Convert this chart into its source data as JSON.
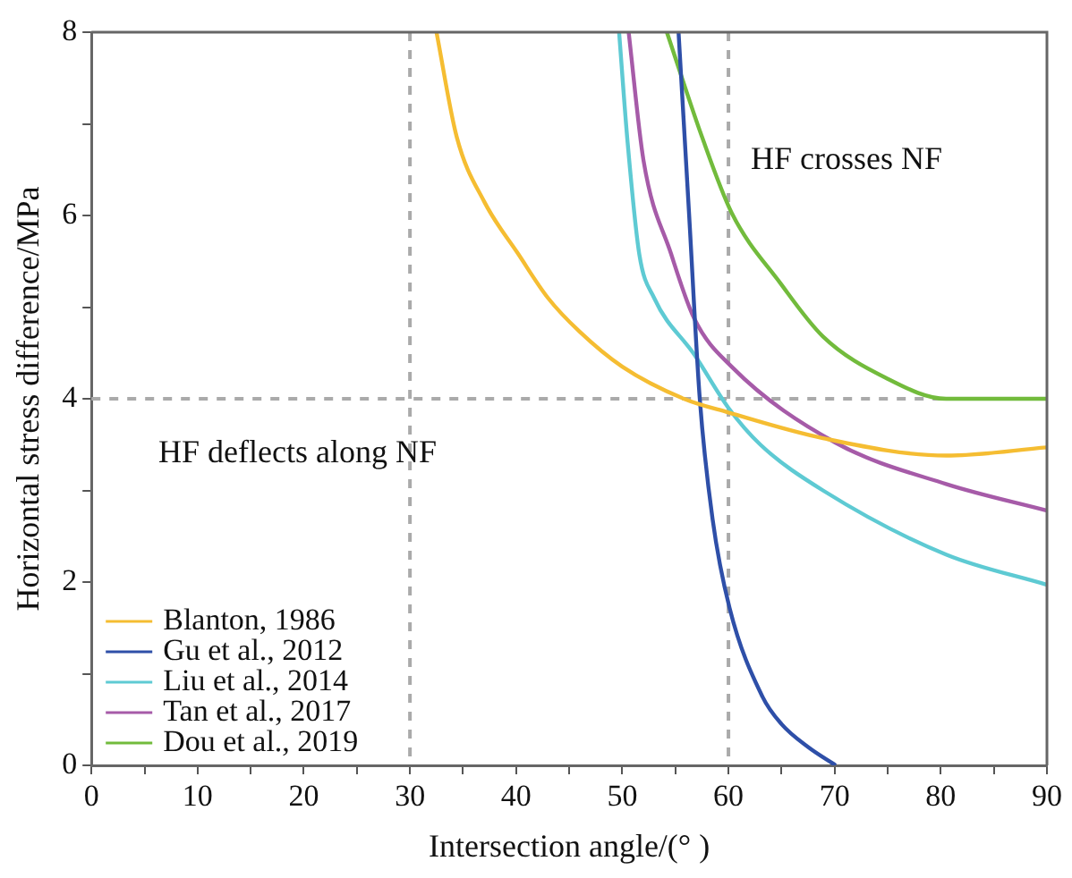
{
  "chart_data": {
    "type": "line",
    "xlabel": "Intersection angle/(° )",
    "ylabel": "Horizontal stress difference/MPa",
    "xlim": [
      0,
      90
    ],
    "ylim": [
      0,
      8
    ],
    "xticks": [
      0,
      {
        "value": 5,
        "label": null
      },
      10,
      {
        "value": 15,
        "label": null
      },
      20,
      {
        "value": 25,
        "label": null
      },
      30,
      {
        "value": 35,
        "label": null
      },
      40,
      {
        "value": 45,
        "label": null
      },
      50,
      {
        "value": 55,
        "label": null
      },
      60,
      {
        "value": 65,
        "label": null
      },
      70,
      {
        "value": 75,
        "label": null
      },
      80,
      {
        "value": 85,
        "label": null
      },
      90
    ],
    "yticks": [
      0,
      {
        "value": 1,
        "label": null
      },
      2,
      {
        "value": 3,
        "label": null
      },
      4,
      {
        "value": 5,
        "label": null
      },
      6,
      {
        "value": 7,
        "label": null
      },
      8
    ],
    "grid": false,
    "legend": "bottom left",
    "marker": "none",
    "line_style": "solid",
    "series": [
      {
        "name": "Blanton, 1986",
        "color": "#f5bd32",
        "x": [
          32.5,
          34.4,
          37,
          40.2,
          43,
          46,
          50,
          55.8,
          60,
          68.9,
          80.5,
          90
        ],
        "values": [
          8,
          6.86,
          6.15,
          5.58,
          5.1,
          4.73,
          4.35,
          4.0,
          3.85,
          3.57,
          3.38,
          3.47
        ]
      },
      {
        "name": "Gu et al., 2012",
        "color": "#2e4fa8",
        "x": [
          55.3,
          56.3,
          57.3,
          58.5,
          60.1,
          63.2,
          65,
          67.5,
          70.1
        ],
        "values": [
          8,
          6,
          4.0,
          2.69,
          1.72,
          0.75,
          0.45,
          0.2,
          0
        ]
      },
      {
        "name": "Liu et al., 2014",
        "color": "#5ecad3",
        "x": [
          49.7,
          50.5,
          51.6,
          53,
          56.8,
          60,
          63,
          68.9,
          80.5,
          90
        ],
        "values": [
          8,
          6.8,
          5.58,
          5.1,
          4.48,
          3.9,
          3.5,
          3.0,
          2.3,
          1.97
        ]
      },
      {
        "name": "Tan et al., 2017",
        "color": "#a65ba8",
        "x": [
          50.6,
          52,
          54.6,
          56.8,
          60.3,
          70.1,
          80.5,
          90
        ],
        "values": [
          8,
          6.6,
          5.58,
          4.87,
          4.35,
          3.52,
          3.07,
          2.78
        ]
      },
      {
        "name": "Dou et al., 2019",
        "color": "#72bb3c",
        "x": [
          54.2,
          57.5,
          60.3,
          64.9,
          68.9,
          74.8,
          80.5,
          90
        ],
        "values": [
          8,
          6.86,
          6.03,
          5.26,
          4.68,
          4.23,
          4.0,
          4.0
        ]
      }
    ],
    "ref_lines": [
      {
        "axis": "x",
        "value": 30,
        "color": "#aaaaaa",
        "line_style": "dashed"
      },
      {
        "axis": "x",
        "value": 60,
        "color": "#aaaaaa",
        "line_style": "dashed"
      },
      {
        "axis": "y",
        "value": 4,
        "color": "#aaaaaa",
        "line_style": "dashed"
      }
    ],
    "annotations": [
      "HF crosses NF",
      "HF deflects along NF"
    ]
  }
}
